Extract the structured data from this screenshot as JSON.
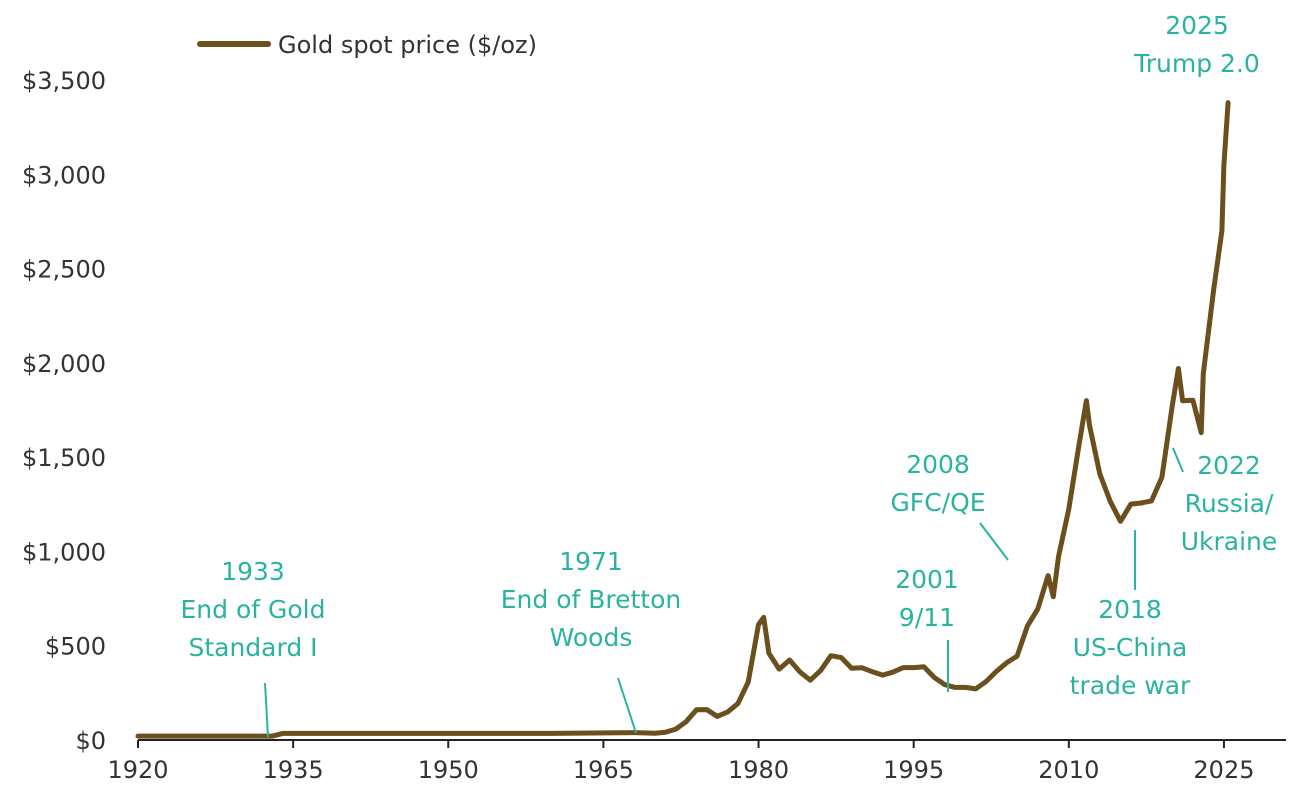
{
  "chart_data": {
    "type": "line",
    "title": "",
    "xlabel": "",
    "ylabel": "",
    "xlim": [
      1920,
      2031
    ],
    "ylim": [
      0,
      3500
    ],
    "x_ticks": [
      1920,
      1935,
      1950,
      1965,
      1980,
      1995,
      2010,
      2025
    ],
    "x_tick_labels": [
      "1920",
      "1935",
      "1950",
      "1965",
      "1980",
      "1995",
      "2010",
      "2025"
    ],
    "y_ticks": [
      0,
      500,
      1000,
      1500,
      2000,
      2500,
      3000,
      3500
    ],
    "y_tick_labels": [
      "$0",
      "$500",
      "$1,000",
      "$1,500",
      "$2,000",
      "$2,500",
      "$3,000",
      "$3,500"
    ],
    "grid": false,
    "legend": {
      "position": "top-left"
    },
    "colors": {
      "series": "#6b4f1d",
      "annotation": "#2ab3a0",
      "axis": "#222222",
      "text": "#333333"
    },
    "series": [
      {
        "name": "Gold spot price ($/oz)",
        "points": [
          [
            1920,
            20.7
          ],
          [
            1933,
            20.7
          ],
          [
            1934,
            35
          ],
          [
            1940,
            35
          ],
          [
            1950,
            35
          ],
          [
            1960,
            35
          ],
          [
            1968,
            39
          ],
          [
            1970,
            36
          ],
          [
            1971,
            41
          ],
          [
            1972,
            58
          ],
          [
            1973,
            97
          ],
          [
            1974,
            160
          ],
          [
            1975,
            161
          ],
          [
            1976,
            125
          ],
          [
            1977,
            148
          ],
          [
            1978,
            193
          ],
          [
            1979,
            307
          ],
          [
            1980,
            612
          ],
          [
            1980.5,
            650
          ],
          [
            1981,
            460
          ],
          [
            1982,
            376
          ],
          [
            1983,
            424
          ],
          [
            1984,
            361
          ],
          [
            1985,
            317
          ],
          [
            1986,
            368
          ],
          [
            1987,
            447
          ],
          [
            1988,
            437
          ],
          [
            1989,
            381
          ],
          [
            1990,
            383
          ],
          [
            1991,
            362
          ],
          [
            1992,
            344
          ],
          [
            1993,
            360
          ],
          [
            1994,
            384
          ],
          [
            1995,
            384
          ],
          [
            1996,
            388
          ],
          [
            1997,
            331
          ],
          [
            1998,
            294
          ],
          [
            1999,
            279
          ],
          [
            2000,
            279
          ],
          [
            2001,
            271
          ],
          [
            2002,
            310
          ],
          [
            2003,
            364
          ],
          [
            2004,
            410
          ],
          [
            2005,
            445
          ],
          [
            2006,
            604
          ],
          [
            2007,
            695
          ],
          [
            2008,
            872
          ],
          [
            2008.5,
            760
          ],
          [
            2009,
            972
          ],
          [
            2010,
            1225
          ],
          [
            2011,
            1572
          ],
          [
            2011.7,
            1800
          ],
          [
            2012,
            1669
          ],
          [
            2013,
            1411
          ],
          [
            2014,
            1266
          ],
          [
            2015,
            1160
          ],
          [
            2016,
            1251
          ],
          [
            2017,
            1257
          ],
          [
            2018,
            1268
          ],
          [
            2019,
            1393
          ],
          [
            2020,
            1770
          ],
          [
            2020.6,
            1970
          ],
          [
            2021,
            1799
          ],
          [
            2022,
            1802
          ],
          [
            2022.8,
            1630
          ],
          [
            2023,
            1943
          ],
          [
            2024,
            2386
          ],
          [
            2024.8,
            2700
          ],
          [
            2025,
            3050
          ],
          [
            2025.4,
            3380
          ]
        ]
      }
    ],
    "annotations": [
      {
        "lines": [
          "1933",
          "End of Gold",
          "Standard I"
        ],
        "x": 1933
      },
      {
        "lines": [
          "1971",
          "End of Bretton",
          "Woods"
        ],
        "x": 1971
      },
      {
        "lines": [
          "2001",
          "9/11"
        ],
        "x": 2001
      },
      {
        "lines": [
          "2008",
          "GFC/QE"
        ],
        "x": 2008
      },
      {
        "lines": [
          "2018",
          "US-China",
          "trade war"
        ],
        "x": 2018
      },
      {
        "lines": [
          "2022",
          "Russia/",
          "Ukraine"
        ],
        "x": 2022
      },
      {
        "lines": [
          "2025",
          "Trump 2.0"
        ],
        "x": 2025
      }
    ]
  }
}
